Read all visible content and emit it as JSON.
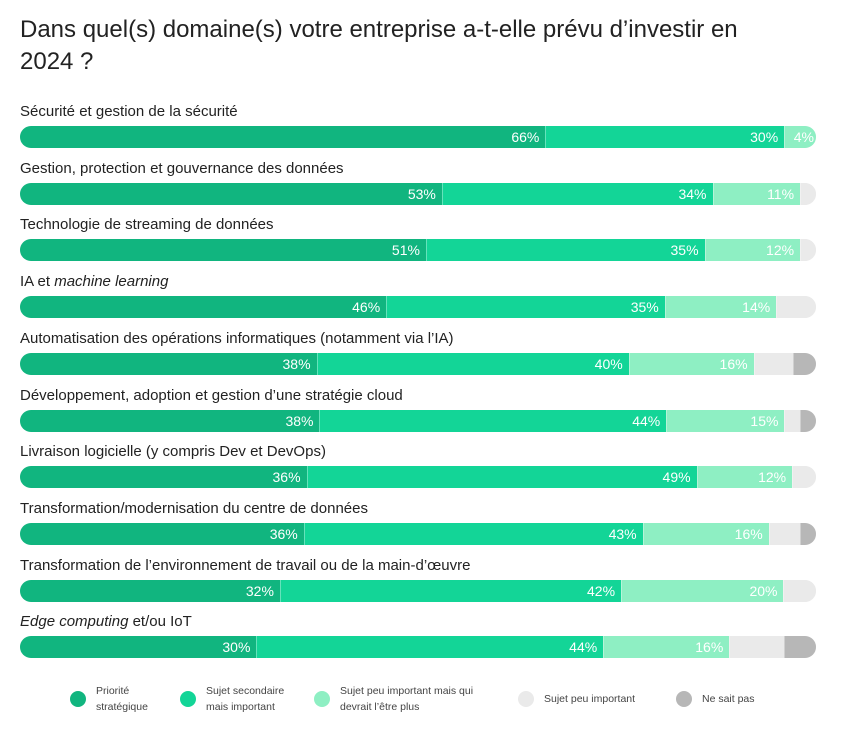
{
  "chart_data": {
    "type": "bar",
    "orientation": "horizontal",
    "stacked": true,
    "title": "Dans quel(s) domaine(s) votre entreprise a-t-elle prévu d’investir en 2024 ?",
    "categories": [
      "Sécurité et gestion de la sécurité",
      "Gestion, protection et gouvernance des données",
      "Technologie de streaming de données",
      "IA et machine learning",
      "Automatisation des opérations informatiques (notamment via l’IA)",
      "Développement, adoption et gestion d’une stratégie cloud",
      "Livraison logicielle (y compris Dev et DevOps)",
      "Transformation/modernisation du centre de données",
      "Transformation de l’environnement de travail ou de la main-d’œuvre",
      "Edge computing et/ou IoT"
    ],
    "series": [
      {
        "name": "Priorité stratégique",
        "color": "#11b57f",
        "values": [
          66,
          53,
          51,
          46,
          38,
          38,
          36,
          36,
          32,
          30
        ]
      },
      {
        "name": "Sujet secondaire mais important",
        "color": "#13d597",
        "values": [
          30,
          34,
          35,
          35,
          40,
          44,
          49,
          43,
          42,
          44
        ]
      },
      {
        "name": "Sujet peu important mais qui devrait l’être plus",
        "color": "#8eefc3",
        "values": [
          4,
          11,
          12,
          14,
          16,
          15,
          12,
          16,
          20,
          16
        ]
      },
      {
        "name": "Sujet peu important",
        "color": "#eaeaea",
        "values": [
          0,
          2,
          2,
          5,
          5,
          2,
          3,
          4,
          4,
          7
        ]
      },
      {
        "name": "Ne sait pas",
        "color": "#b7b7b7",
        "values": [
          0,
          0,
          0,
          0,
          3,
          2,
          0,
          2,
          0,
          4
        ]
      }
    ],
    "data_labels": [
      [
        "66%",
        "30%",
        "4%",
        "",
        ""
      ],
      [
        "53%",
        "34%",
        "11%",
        "",
        ""
      ],
      [
        "51%",
        "35%",
        "12%",
        "",
        ""
      ],
      [
        "46%",
        "35%",
        "14%",
        "",
        ""
      ],
      [
        "38%",
        "40%",
        "16%",
        "",
        ""
      ],
      [
        "38%",
        "44%",
        "15%",
        "",
        ""
      ],
      [
        "36%",
        "49%",
        "12%",
        "",
        ""
      ],
      [
        "36%",
        "43%",
        "16%",
        "",
        ""
      ],
      [
        "32%",
        "42%",
        "20%",
        "",
        ""
      ],
      [
        "30%",
        "44%",
        "16%",
        "",
        ""
      ]
    ],
    "xlim": [
      0,
      100
    ],
    "grid": false,
    "legend": "bottom"
  },
  "label_parts": [
    [
      {
        "t": "Sécurité et gestion de la sécurité",
        "i": false
      }
    ],
    [
      {
        "t": "Gestion, protection et gouvernance des données",
        "i": false
      }
    ],
    [
      {
        "t": "Technologie de streaming de données",
        "i": false
      }
    ],
    [
      {
        "t": "IA et ",
        "i": false
      },
      {
        "t": "machine learning",
        "i": true
      }
    ],
    [
      {
        "t": "Automatisation des opérations informatiques (notamment via l’IA)",
        "i": false
      }
    ],
    [
      {
        "t": "Développement, adoption et gestion d’une stratégie cloud",
        "i": false
      }
    ],
    [
      {
        "t": "Livraison logicielle (y compris Dev et DevOps)",
        "i": false
      }
    ],
    [
      {
        "t": "Transformation/modernisation du centre de données",
        "i": false
      }
    ],
    [
      {
        "t": "Transformation de l’environnement de travail ou de la main-d’œuvre",
        "i": false
      }
    ],
    [
      {
        "t": "Edge computing",
        "i": true
      },
      {
        "t": " et/ou IoT",
        "i": false
      }
    ]
  ],
  "legend_items": [
    {
      "text": "Priorité\nstratégique",
      "color": "#11b57f"
    },
    {
      "text": "Sujet secondaire\nmais important",
      "color": "#13d597"
    },
    {
      "text": "Sujet peu important mais qui\ndevrait l’être plus",
      "color": "#8eefc3"
    },
    {
      "text": "Sujet peu important",
      "color": "#eaeaea"
    },
    {
      "text": "Ne sait pas",
      "color": "#b7b7b7"
    }
  ]
}
